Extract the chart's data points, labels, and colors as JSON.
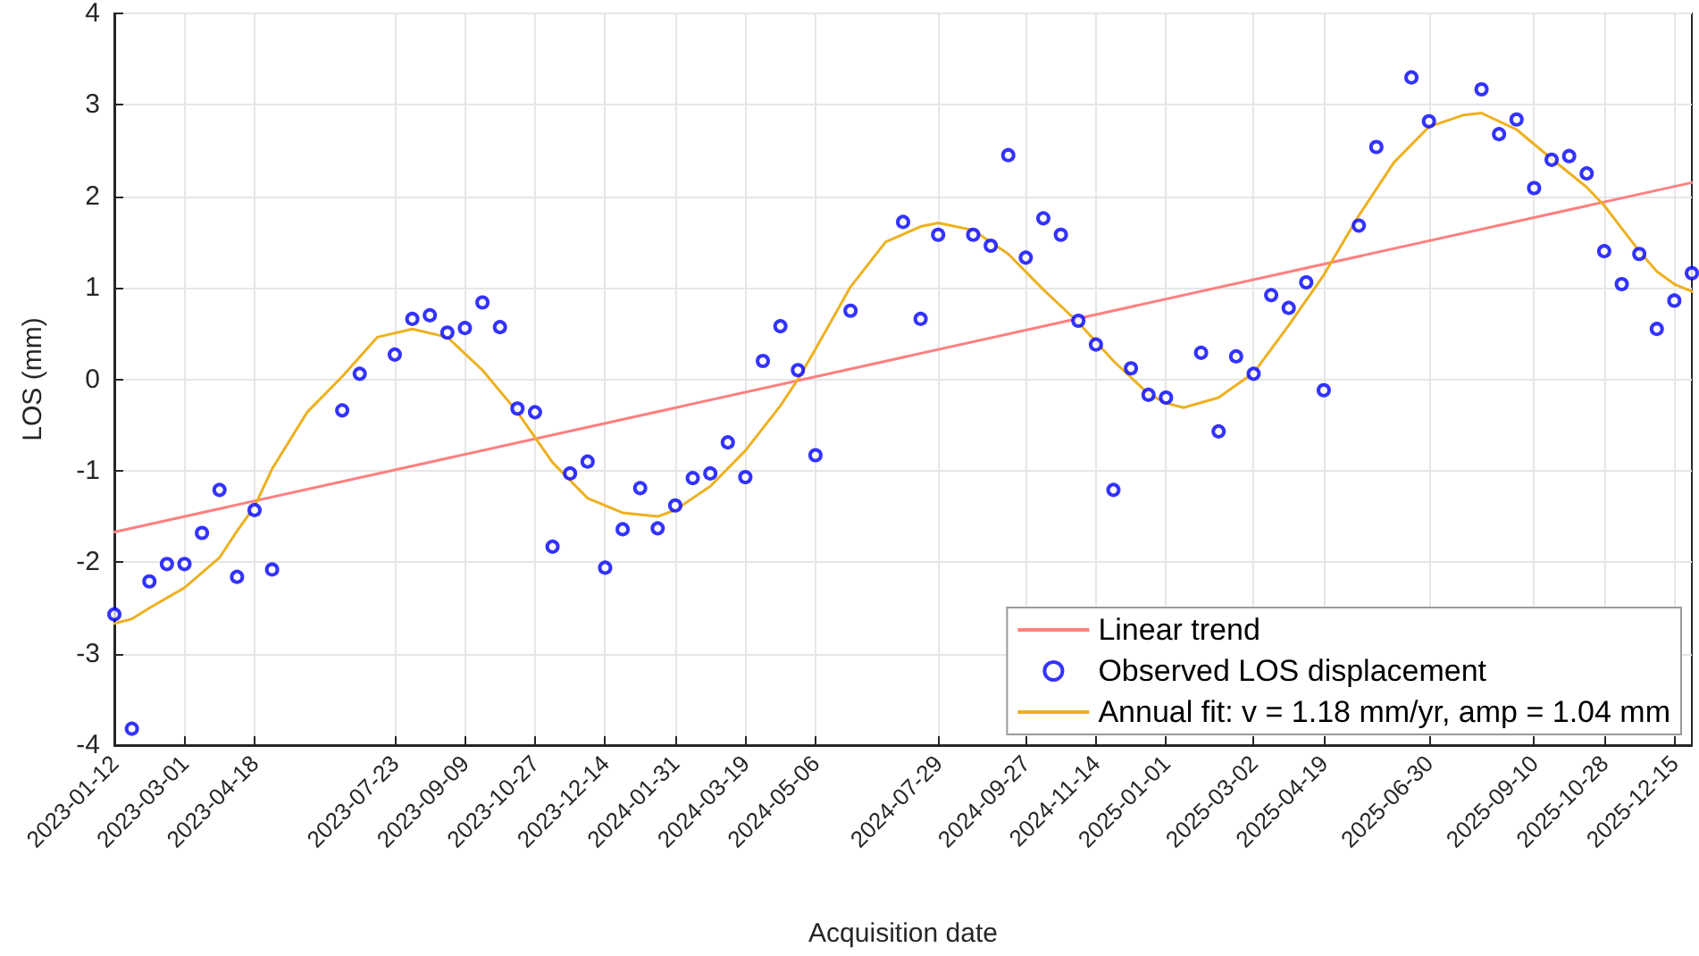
{
  "chart_data": {
    "type": "scatter",
    "xlabel": "Acquisition date",
    "ylabel": "LOS (mm)",
    "xlim": [
      "2023-01-12",
      "2025-12-27"
    ],
    "xticks": [
      "2023-01-12",
      "2023-03-01",
      "2023-04-18",
      "2023-07-23",
      "2023-09-09",
      "2023-10-27",
      "2023-12-14",
      "2024-01-31",
      "2024-03-19",
      "2024-05-06",
      "2024-07-29",
      "2024-09-27",
      "2024-11-14",
      "2025-01-01",
      "2025-03-02",
      "2025-04-19",
      "2025-06-30",
      "2025-09-10",
      "2025-10-28",
      "2025-12-15"
    ],
    "ylim": [
      -4,
      4
    ],
    "yticks": [
      -4,
      -3,
      -2,
      -1,
      0,
      1,
      2,
      3,
      4
    ],
    "grid": true,
    "legend": "bottom right",
    "series": [
      {
        "name": "Linear trend",
        "type": "line",
        "color": "#ff8080",
        "marker": "none",
        "line_style": "solid",
        "x": [
          "2023-01-12",
          "2025-12-27"
        ],
        "values": [
          -1.67,
          2.15
        ]
      },
      {
        "name": "Observed LOS displacement",
        "color": "#0000ff",
        "marker": "circle",
        "x": [
          "2023-01-12",
          "2023-01-24",
          "2023-02-05",
          "2023-02-17",
          "2023-03-01",
          "2023-03-13",
          "2023-03-25",
          "2023-04-06",
          "2023-04-18",
          "2023-04-30",
          "2023-06-17",
          "2023-06-29",
          "2023-07-23",
          "2023-08-04",
          "2023-08-16",
          "2023-08-28",
          "2023-09-09",
          "2023-09-21",
          "2023-10-03",
          "2023-10-15",
          "2023-10-27",
          "2023-11-08",
          "2023-11-20",
          "2023-12-02",
          "2023-12-14",
          "2023-12-26",
          "2024-01-07",
          "2024-01-19",
          "2024-01-31",
          "2024-02-12",
          "2024-02-24",
          "2024-03-07",
          "2024-03-19",
          "2024-03-31",
          "2024-04-12",
          "2024-04-24",
          "2024-05-06",
          "2024-05-30",
          "2024-07-05",
          "2024-07-17",
          "2024-07-29",
          "2024-08-22",
          "2024-09-03",
          "2024-09-15",
          "2024-09-27",
          "2024-10-09",
          "2024-10-21",
          "2024-11-02",
          "2024-11-14",
          "2024-11-26",
          "2024-12-08",
          "2024-12-20",
          "2025-01-01",
          "2025-01-25",
          "2025-02-06",
          "2025-02-18",
          "2025-03-02",
          "2025-03-14",
          "2025-03-26",
          "2025-04-07",
          "2025-04-19",
          "2025-05-13",
          "2025-05-25",
          "2025-06-18",
          "2025-06-30",
          "2025-08-05",
          "2025-08-17",
          "2025-08-29",
          "2025-09-10",
          "2025-09-22",
          "2025-10-04",
          "2025-10-16",
          "2025-10-28",
          "2025-11-09",
          "2025-11-21",
          "2025-12-03",
          "2025-12-15",
          "2025-12-27"
        ],
        "values": [
          -2.57,
          -3.82,
          -2.21,
          -2.02,
          -2.02,
          -1.68,
          -1.21,
          -2.16,
          -1.43,
          -2.08,
          -0.34,
          0.06,
          0.27,
          0.66,
          0.7,
          0.51,
          0.56,
          0.84,
          0.57,
          -0.32,
          -0.36,
          -1.83,
          -1.03,
          -0.9,
          -2.06,
          -1.64,
          -1.19,
          -1.63,
          -1.38,
          -1.08,
          -1.03,
          -0.69,
          -1.07,
          0.2,
          0.58,
          0.1,
          -0.83,
          0.75,
          1.72,
          0.66,
          1.58,
          1.58,
          1.46,
          2.45,
          1.33,
          1.76,
          1.58,
          0.64,
          0.38,
          -1.21,
          0.12,
          -0.17,
          -0.2,
          0.29,
          -0.57,
          0.25,
          0.06,
          0.92,
          0.78,
          1.06,
          -0.12,
          1.68,
          2.54,
          3.3,
          2.82,
          3.17,
          2.68,
          2.84,
          2.09,
          2.4,
          2.44,
          2.25,
          1.4,
          1.04,
          1.37,
          0.55,
          0.86,
          1.16
        ]
      },
      {
        "name": "Annual fit: v = 1.18 mm/yr, amp = 1.04 mm",
        "type": "line",
        "color": "#edb120",
        "marker": "none",
        "line_style": "solid",
        "x": [
          "2023-01-12",
          "2023-01-24",
          "2023-02-05",
          "2023-03-01",
          "2023-03-25",
          "2023-04-06",
          "2023-04-18",
          "2023-04-30",
          "2023-05-24",
          "2023-06-17",
          "2023-07-11",
          "2023-08-04",
          "2023-08-28",
          "2023-09-21",
          "2023-10-15",
          "2023-11-08",
          "2023-12-02",
          "2023-12-26",
          "2024-01-19",
          "2024-01-31",
          "2024-02-24",
          "2024-03-19",
          "2024-04-12",
          "2024-04-24",
          "2024-05-06",
          "2024-05-30",
          "2024-06-23",
          "2024-07-17",
          "2024-07-29",
          "2024-08-22",
          "2024-09-15",
          "2024-10-09",
          "2024-11-02",
          "2024-11-26",
          "2024-12-20",
          "2025-01-01",
          "2025-01-13",
          "2025-02-06",
          "2025-03-02",
          "2025-03-26",
          "2025-04-19",
          "2025-05-13",
          "2025-06-06",
          "2025-06-30",
          "2025-07-24",
          "2025-08-05",
          "2025-08-29",
          "2025-09-22",
          "2025-10-16",
          "2025-10-28",
          "2025-11-09",
          "2025-11-21",
          "2025-12-03",
          "2025-12-15",
          "2025-12-27"
        ],
        "values": [
          -2.67,
          -2.62,
          -2.5,
          -2.28,
          -1.95,
          -1.66,
          -1.39,
          -0.98,
          -0.36,
          0.03,
          0.46,
          0.55,
          0.46,
          0.1,
          -0.36,
          -0.91,
          -1.3,
          -1.46,
          -1.5,
          -1.43,
          -1.17,
          -0.78,
          -0.29,
          0.0,
          0.33,
          1.01,
          1.5,
          1.67,
          1.71,
          1.63,
          1.37,
          0.98,
          0.62,
          0.2,
          -0.16,
          -0.26,
          -0.31,
          -0.2,
          0.07,
          0.59,
          1.14,
          1.79,
          2.37,
          2.76,
          2.89,
          2.91,
          2.73,
          2.41,
          2.1,
          1.9,
          1.65,
          1.4,
          1.18,
          1.04,
          0.96
        ]
      }
    ]
  }
}
